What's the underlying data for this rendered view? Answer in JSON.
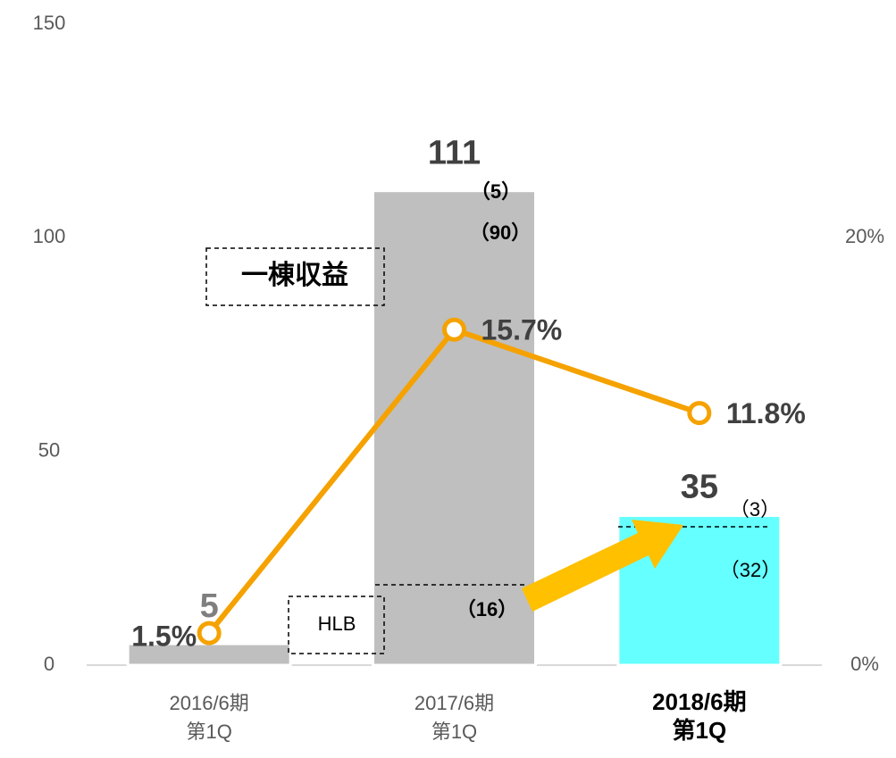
{
  "chart_data": {
    "type": "bar",
    "categories": [
      "2016/6期\n第1Q",
      "2017/6期\n第1Q",
      "2018/6期\n第1Q"
    ],
    "series": [
      {
        "type": "bar",
        "values": [
          5,
          111,
          35
        ],
        "colors": [
          "#bfbfbf",
          "#bfbfbf",
          "#66ffff"
        ]
      },
      {
        "type": "line",
        "axis": "y2",
        "values": [
          1.5,
          15.7,
          11.8
        ],
        "value_labels": [
          "1.5%",
          "15.7%",
          "11.8%"
        ],
        "color": "#f5a200"
      }
    ],
    "ylim": [
      0,
      150
    ],
    "yticks": [
      0,
      50,
      100,
      150
    ],
    "y2lim": [
      0,
      30
    ],
    "y2ticks": [
      {
        "value": 0,
        "label": "0%"
      },
      {
        "value": 20,
        "label": "20%"
      }
    ],
    "annotations": [
      "（5）",
      "（90）",
      "（16）",
      "（3）",
      "（32）",
      "一棟収益",
      "HLB"
    ]
  }
}
